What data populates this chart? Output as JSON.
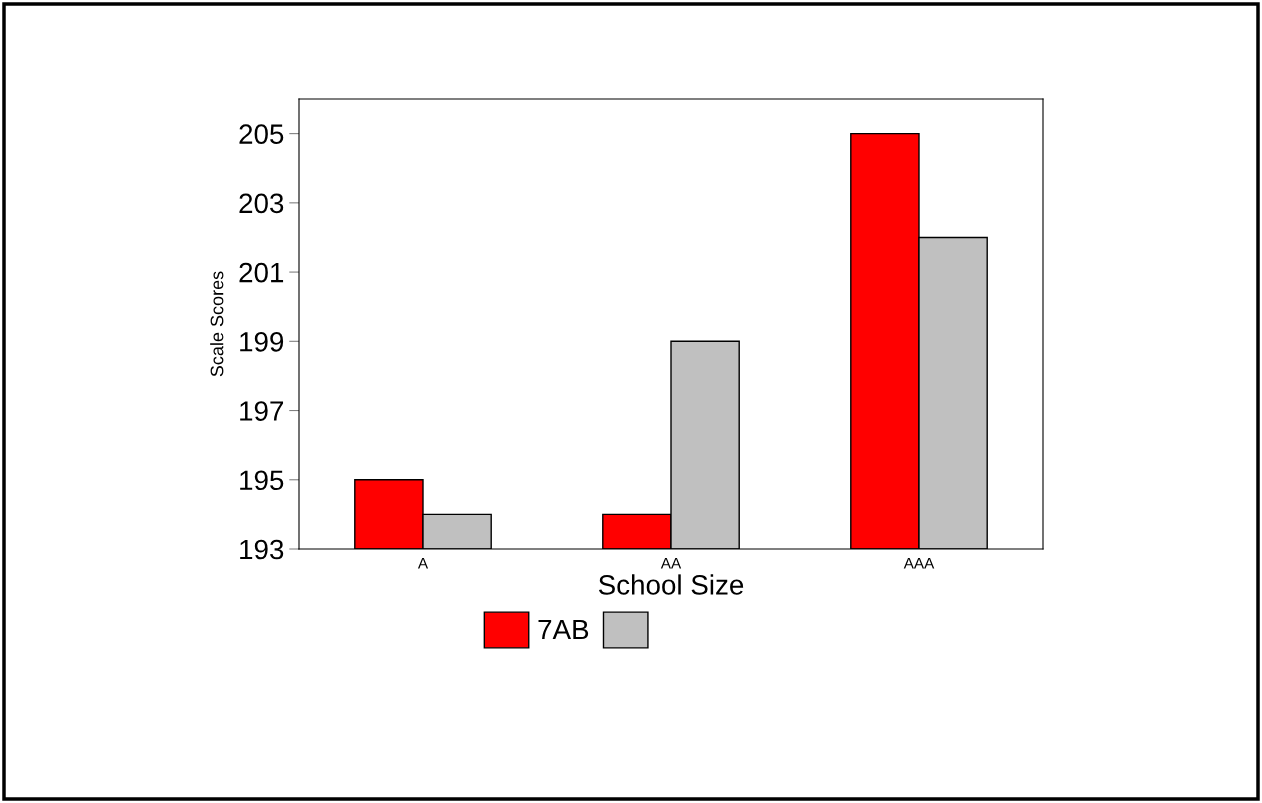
{
  "chart_data": {
    "type": "bar",
    "xlabel": "School Size",
    "ylabel": "Scale Scores",
    "categories": [
      "A",
      "AA",
      "AAA"
    ],
    "series": [
      {
        "name": "7AB",
        "color": "#ff0000",
        "values": [
          195,
          194,
          205
        ]
      },
      {
        "color": "#c0c0c0",
        "values": [
          194,
          199,
          202
        ]
      }
    ],
    "ylim": [
      193,
      206
    ],
    "yticks": [
      193,
      195,
      197,
      199,
      201,
      203,
      205
    ],
    "grid": false,
    "legend": "bottom"
  }
}
